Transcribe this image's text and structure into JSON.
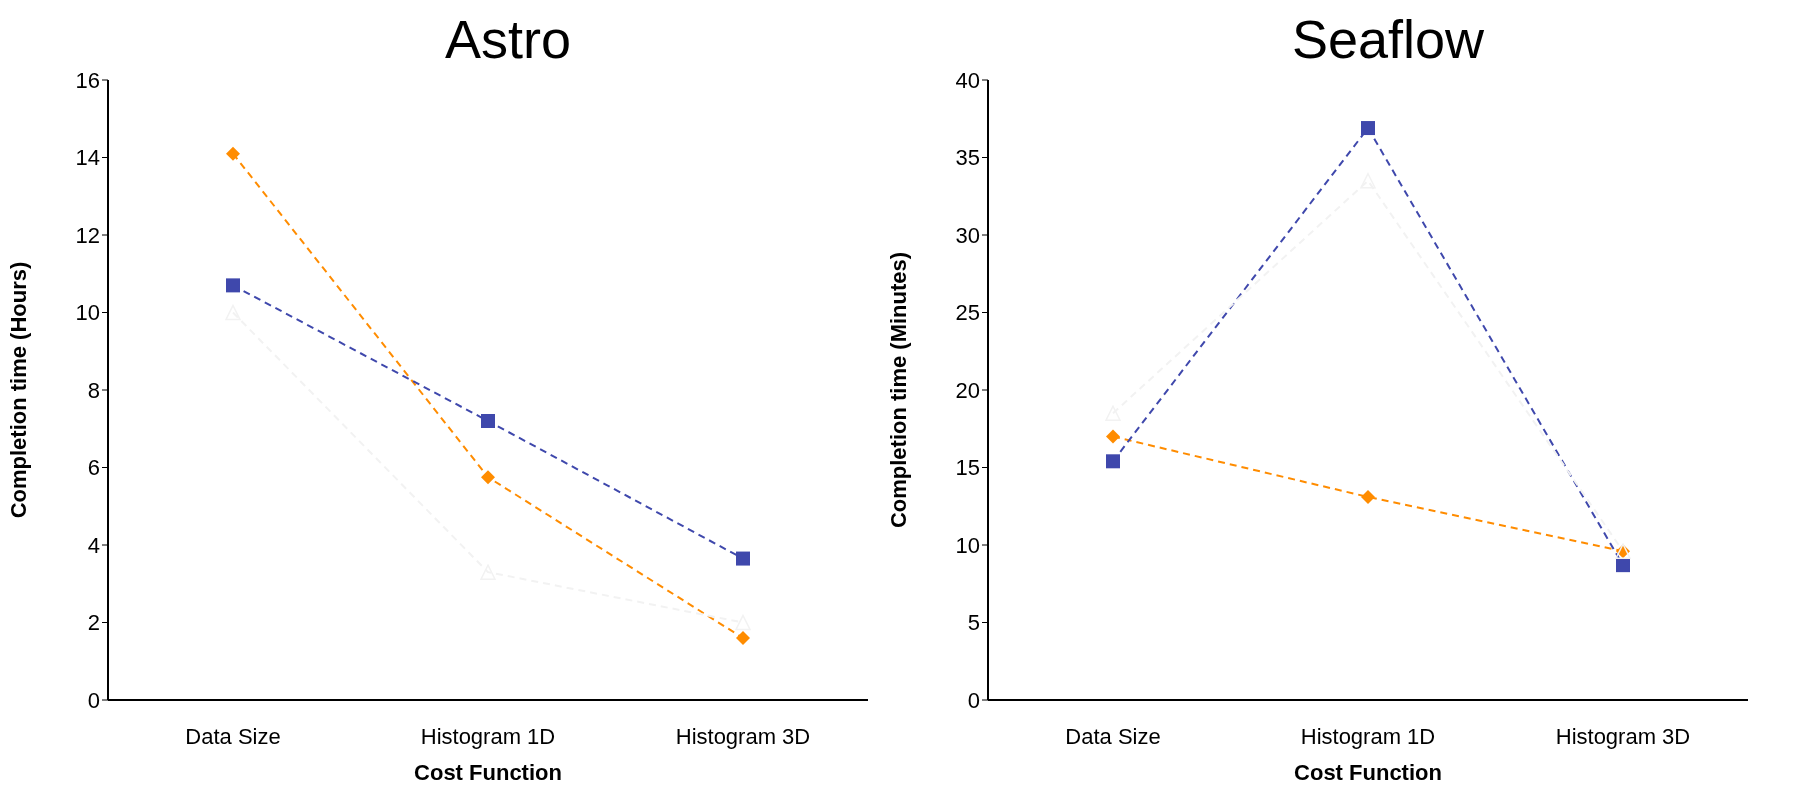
{
  "chart_data": [
    {
      "type": "line",
      "title": "Astro",
      "xlabel": "Cost Function",
      "ylabel": "Completion time (Hours)",
      "categories": [
        "Data Size",
        "Histogram 1D",
        "Histogram 3D"
      ],
      "ylim": [
        0,
        16
      ],
      "yticks": [
        0,
        2,
        4,
        6,
        8,
        10,
        12,
        14,
        16
      ],
      "grid": false,
      "line_style": "dashed",
      "series": [
        {
          "color": "#ff8c00",
          "marker": "diamond",
          "values": [
            14.1,
            5.75,
            1.6
          ]
        },
        {
          "color": "#3f48ac",
          "marker": "square",
          "values": [
            10.7,
            7.2,
            3.65
          ]
        },
        {
          "color": "#f2f2f2",
          "marker": "triangle",
          "values": [
            10.0,
            3.3,
            2.0
          ]
        }
      ]
    },
    {
      "type": "line",
      "title": "Seaflow",
      "xlabel": "Cost Function",
      "ylabel": "Completion time (Minutes)",
      "categories": [
        "Data Size",
        "Histogram 1D",
        "Histogram 3D"
      ],
      "ylim": [
        0,
        40
      ],
      "yticks": [
        0,
        5,
        10,
        15,
        20,
        25,
        30,
        35,
        40
      ],
      "grid": false,
      "line_style": "dashed",
      "series": [
        {
          "color": "#ff8c00",
          "marker": "diamond",
          "values": [
            17.0,
            13.1,
            9.6
          ]
        },
        {
          "color": "#3f48ac",
          "marker": "square",
          "values": [
            15.4,
            36.9,
            8.7
          ]
        },
        {
          "color": "#f2f2f2",
          "marker": "triangle",
          "values": [
            18.5,
            33.5,
            9.6
          ]
        }
      ]
    }
  ]
}
